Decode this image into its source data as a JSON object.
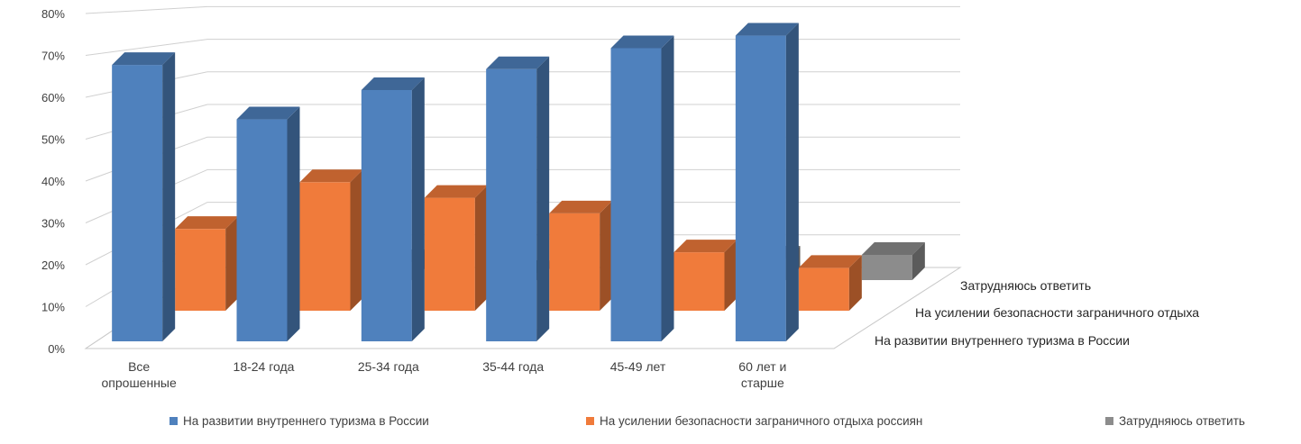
{
  "chart_data": {
    "type": "bar",
    "title": "",
    "xlabel": "",
    "ylabel": "",
    "ylim": [
      0,
      80
    ],
    "yticks": [
      "0%",
      "10%",
      "20%",
      "30%",
      "40%",
      "50%",
      "60%",
      "70%",
      "80%"
    ],
    "categories": [
      "Все опрошенные",
      "18-24 года",
      "25-34 года",
      "35-44 года",
      "45-49 лет",
      "60 лет и старше"
    ],
    "category_lines": [
      [
        "Все",
        "опрошенные"
      ],
      [
        "18-24 года"
      ],
      [
        "25-34 года"
      ],
      [
        "35-44 года"
      ],
      [
        "45-49 лет"
      ],
      [
        "60 лет и",
        "старше"
      ]
    ],
    "series": [
      {
        "name": "На развитии внутреннего туризма в России",
        "depth_label": "На развитии внутреннего туризма в России",
        "color": "#4f81bd",
        "values": [
          66,
          53,
          60,
          65,
          70,
          73
        ]
      },
      {
        "name": "На усилении безопасности заграничного отдыха  россиян",
        "depth_label": "На усилении безопасности заграничного отдыха",
        "color": "#f07b3b",
        "values": [
          21,
          33,
          29,
          25,
          15,
          11
        ]
      },
      {
        "name": "Затрудняюсь ответить",
        "depth_label": "Затрудняюсь ответить",
        "color": "#8c8c8c",
        "values": [
          3,
          5,
          2,
          2,
          6,
          7
        ]
      }
    ],
    "grid": true,
    "legend_position": "bottom"
  }
}
